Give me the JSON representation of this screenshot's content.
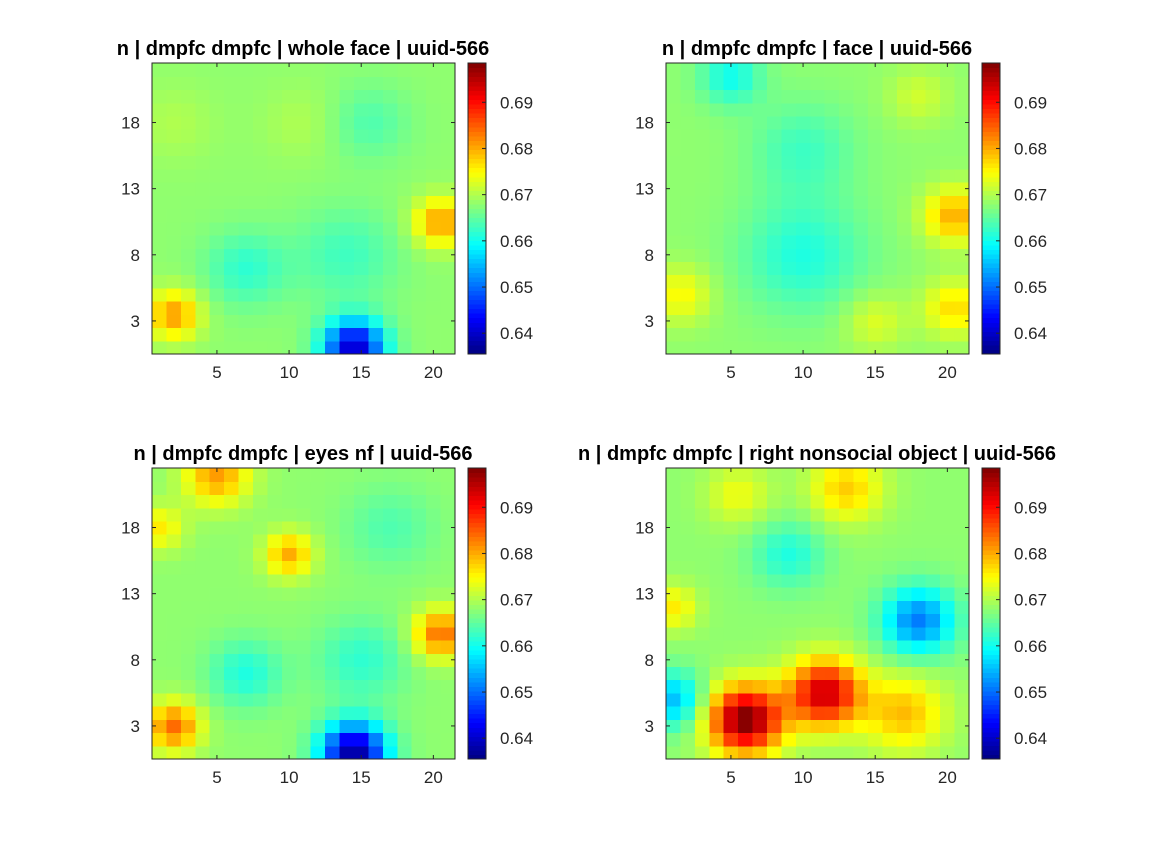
{
  "chart_data": [
    {
      "type": "heatmap",
      "title": "n | dmpfc dmpfc | whole face | uuid-566",
      "xlabel": "",
      "ylabel": "",
      "grid": false,
      "xticks": [
        5,
        10,
        15,
        20
      ],
      "yticks": [
        3,
        8,
        13,
        18
      ],
      "xlim": [
        0.5,
        21.5
      ],
      "ylim": [
        0.5,
        22.5
      ],
      "colormap": "jet",
      "clim": [
        0.6355,
        0.6985
      ],
      "colorbar_ticks": [
        "0.64",
        "0.65",
        "0.66",
        "0.67",
        "0.68",
        "0.69"
      ],
      "size": [
        21,
        22
      ],
      "blobs": [
        {
          "x": 20.5,
          "y": 10.5,
          "v": 0.681,
          "s": 1.3
        },
        {
          "x": 2.0,
          "y": 3.5,
          "v": 0.681,
          "s": 1.3
        },
        {
          "x": 14.5,
          "y": 1.0,
          "v": 0.64,
          "s": 1.5
        },
        {
          "x": 7.0,
          "y": 7.0,
          "v": 0.662,
          "s": 2.0
        },
        {
          "x": 14.0,
          "y": 8.0,
          "v": 0.663,
          "s": 2.5
        },
        {
          "x": 15.5,
          "y": 18.0,
          "v": 0.664,
          "s": 2.0
        },
        {
          "x": 11.0,
          "y": 18.0,
          "v": 0.67,
          "s": 2.0
        },
        {
          "x": 2.0,
          "y": 18.0,
          "v": 0.67,
          "s": 2.0
        }
      ]
    },
    {
      "type": "heatmap",
      "title": "n | dmpfc dmpfc | face | uuid-566",
      "xlabel": "",
      "ylabel": "",
      "grid": false,
      "xticks": [
        5,
        10,
        15,
        20
      ],
      "yticks": [
        3,
        8,
        13,
        18
      ],
      "xlim": [
        0.5,
        21.5
      ],
      "ylim": [
        0.5,
        22.5
      ],
      "colormap": "jet",
      "clim": [
        0.6355,
        0.6985
      ],
      "colorbar_ticks": [
        "0.64",
        "0.65",
        "0.66",
        "0.67",
        "0.68",
        "0.69"
      ],
      "size": [
        21,
        22
      ],
      "blobs": [
        {
          "x": 20.5,
          "y": 11.0,
          "v": 0.68,
          "s": 1.5
        },
        {
          "x": 20.5,
          "y": 4.0,
          "v": 0.677,
          "s": 1.5
        },
        {
          "x": 1.5,
          "y": 5.0,
          "v": 0.675,
          "s": 1.5
        },
        {
          "x": 10.0,
          "y": 8.0,
          "v": 0.661,
          "s": 3.0
        },
        {
          "x": 10.0,
          "y": 16.0,
          "v": 0.663,
          "s": 2.5
        },
        {
          "x": 5.0,
          "y": 21.5,
          "v": 0.66,
          "s": 1.5
        },
        {
          "x": 15.0,
          "y": 3.0,
          "v": 0.673,
          "s": 1.5
        },
        {
          "x": 18.0,
          "y": 20.0,
          "v": 0.672,
          "s": 1.5
        }
      ]
    },
    {
      "type": "heatmap",
      "title": "n | dmpfc dmpfc | eyes nf | uuid-566",
      "xlabel": "",
      "ylabel": "",
      "grid": false,
      "xticks": [
        5,
        10,
        15,
        20
      ],
      "yticks": [
        3,
        8,
        13,
        18
      ],
      "xlim": [
        0.5,
        21.5
      ],
      "ylim": [
        0.5,
        22.5
      ],
      "colormap": "jet",
      "clim": [
        0.6355,
        0.6985
      ],
      "colorbar_ticks": [
        "0.64",
        "0.65",
        "0.66",
        "0.67",
        "0.68",
        "0.69"
      ],
      "size": [
        21,
        22
      ],
      "blobs": [
        {
          "x": 20.5,
          "y": 10.0,
          "v": 0.684,
          "s": 1.3
        },
        {
          "x": 2.0,
          "y": 3.0,
          "v": 0.684,
          "s": 1.3
        },
        {
          "x": 14.5,
          "y": 1.0,
          "v": 0.637,
          "s": 1.6
        },
        {
          "x": 10.0,
          "y": 16.0,
          "v": 0.68,
          "s": 1.2
        },
        {
          "x": 5.0,
          "y": 22.0,
          "v": 0.681,
          "s": 1.6
        },
        {
          "x": 1.0,
          "y": 18.0,
          "v": 0.676,
          "s": 1.2
        },
        {
          "x": 7.0,
          "y": 7.0,
          "v": 0.661,
          "s": 1.8
        },
        {
          "x": 15.0,
          "y": 8.0,
          "v": 0.662,
          "s": 2.2
        },
        {
          "x": 17.0,
          "y": 18.0,
          "v": 0.664,
          "s": 2.2
        }
      ]
    },
    {
      "type": "heatmap",
      "title": "n | dmpfc dmpfc | right nonsocial object | uuid-566",
      "xlabel": "",
      "ylabel": "",
      "grid": false,
      "xticks": [
        5,
        10,
        15,
        20
      ],
      "yticks": [
        3,
        8,
        13,
        18
      ],
      "xlim": [
        0.5,
        21.5
      ],
      "ylim": [
        0.5,
        22.5
      ],
      "colormap": "jet",
      "clim": [
        0.6355,
        0.6985
      ],
      "colorbar_ticks": [
        "0.64",
        "0.65",
        "0.66",
        "0.67",
        "0.68",
        "0.69"
      ],
      "size": [
        21,
        22
      ],
      "blobs": [
        {
          "x": 6.0,
          "y": 3.5,
          "v": 0.699,
          "s": 1.8
        },
        {
          "x": 11.5,
          "y": 5.5,
          "v": 0.694,
          "s": 1.8
        },
        {
          "x": 17.0,
          "y": 4.0,
          "v": 0.679,
          "s": 2.0
        },
        {
          "x": 18.0,
          "y": 11.0,
          "v": 0.651,
          "s": 1.8
        },
        {
          "x": 1.0,
          "y": 5.0,
          "v": 0.655,
          "s": 1.5
        },
        {
          "x": 1.0,
          "y": 12.0,
          "v": 0.676,
          "s": 1.2
        },
        {
          "x": 13.0,
          "y": 21.0,
          "v": 0.678,
          "s": 1.8
        },
        {
          "x": 5.5,
          "y": 20.5,
          "v": 0.674,
          "s": 1.6
        },
        {
          "x": 9.0,
          "y": 16.0,
          "v": 0.661,
          "s": 1.8
        }
      ]
    }
  ]
}
